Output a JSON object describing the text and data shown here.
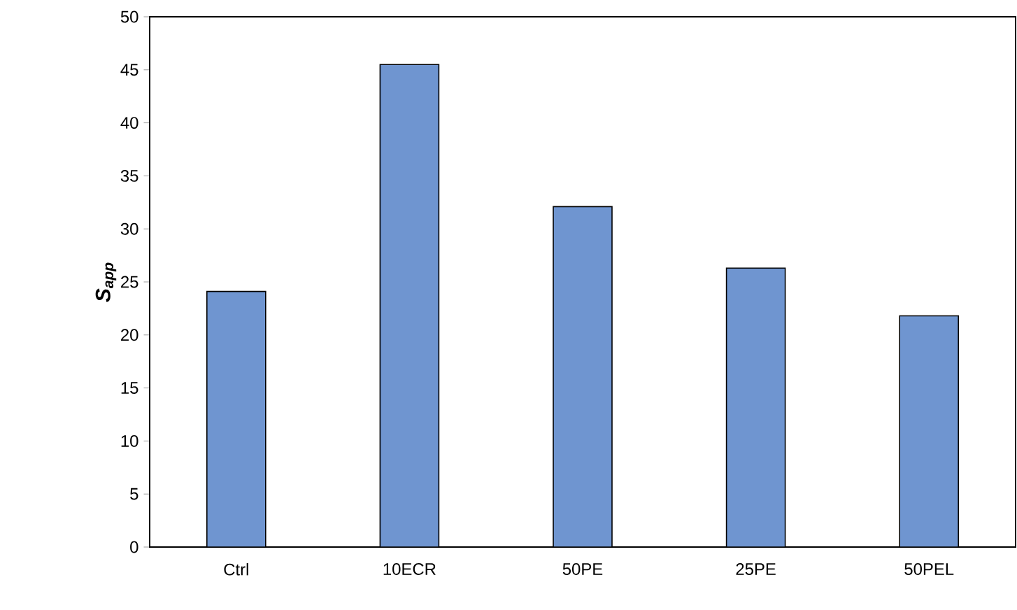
{
  "chart_data": {
    "type": "bar",
    "ylabel": "S$_{app}$",
    "categories": [
      "Ctrl",
      "10ECR",
      "50PE",
      "25PE",
      "50PEL"
    ],
    "values": [
      24.1,
      45.5,
      32.1,
      26.3,
      21.8
    ],
    "color": "#6f95d0",
    "ylim": [
      0,
      50
    ],
    "yticks": [
      0,
      5,
      10,
      15,
      20,
      25,
      30,
      35,
      40,
      45,
      50
    ],
    "grid": false
  }
}
